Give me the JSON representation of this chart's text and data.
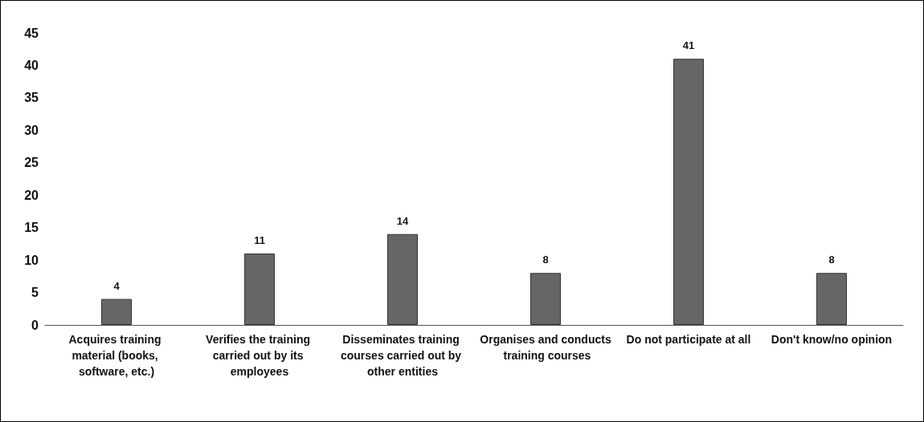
{
  "chart_data": {
    "type": "bar",
    "categories": [
      "Acquires training material (books, software, etc.)",
      "Verifies the training carried out by its employees",
      "Disseminates training courses carried out by other entities",
      "Organises and conducts training courses",
      "Do not participate at all",
      "Don't know/no opinion"
    ],
    "values": [
      4,
      11,
      14,
      8,
      41,
      8
    ],
    "color": "#666666",
    "ylim": [
      0,
      45
    ],
    "yticks": [
      0,
      5,
      10,
      15,
      20,
      25,
      30,
      35,
      40,
      45
    ],
    "grid": false,
    "data_labels": true
  }
}
